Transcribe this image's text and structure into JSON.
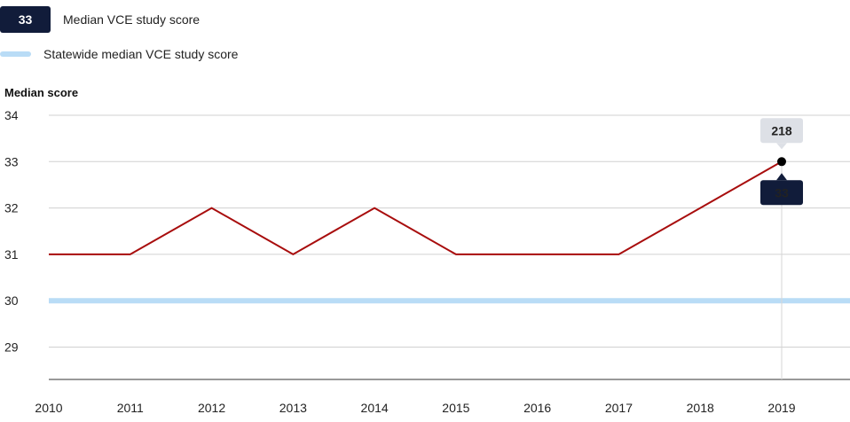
{
  "legend": {
    "badge_value": "33",
    "series_label": "Median VCE study score",
    "reference_label": "Statewide median VCE study score"
  },
  "colors": {
    "series_line": "#a80d0d",
    "reference_line": "#b9dcf6",
    "badge_bg": "#111c3a",
    "tooltip_bg": "#dde0e6",
    "gridline": "#d0d0d0"
  },
  "chart_data": {
    "type": "line",
    "ylabel": "Median score",
    "x": [
      "2010",
      "2011",
      "2012",
      "2013",
      "2014",
      "2015",
      "2016",
      "2017",
      "2018",
      "2019"
    ],
    "series": [
      {
        "name": "Median VCE study score",
        "values": [
          31,
          31,
          32,
          31,
          32,
          31,
          31,
          31,
          32,
          33
        ]
      }
    ],
    "reference": {
      "name": "Statewide median VCE study score",
      "value": 30
    },
    "yticks": [
      29,
      30,
      31,
      32,
      33,
      34
    ],
    "ylim": [
      28.2,
      34
    ],
    "grid": true,
    "highlight": {
      "x": "2019",
      "value": 33,
      "count": 218
    }
  }
}
